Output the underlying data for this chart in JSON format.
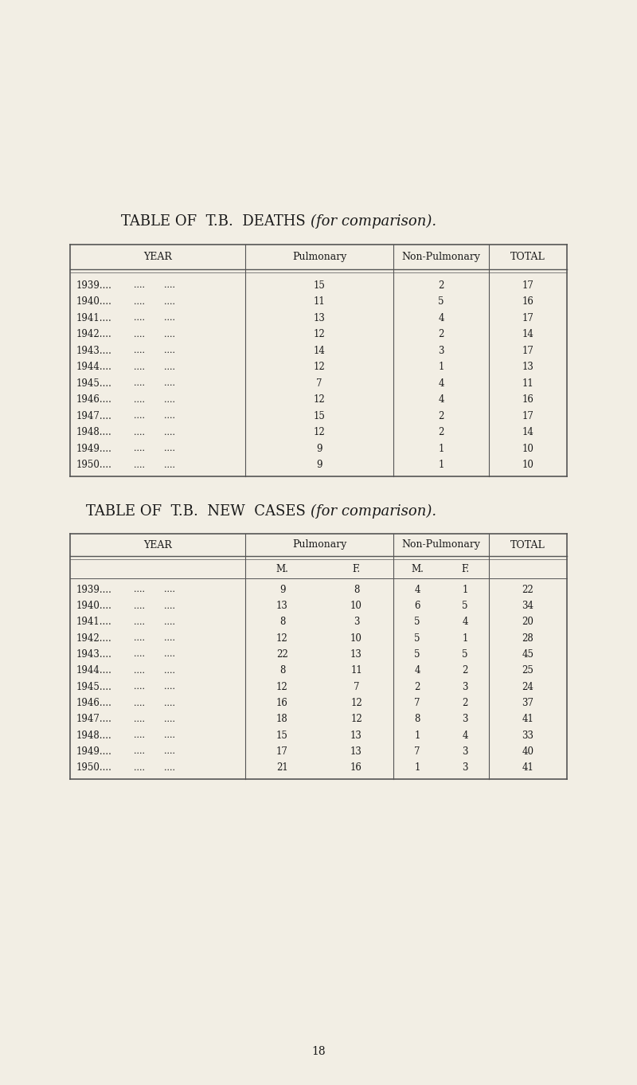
{
  "bg_color": "#f2eee4",
  "text_color": "#1a1a1a",
  "line_color": "#555555",
  "title1_normal": "TABLE OF  T.B.  DEATHS ",
  "title1_italic": "(for comparison).",
  "title2_normal": "TABLE OF  T.B.  NEW  CASES ",
  "title2_italic": "(for comparison).",
  "page_number": "18",
  "deaths_pulmonary": [
    15,
    11,
    13,
    12,
    14,
    12,
    7,
    12,
    15,
    12,
    9,
    9
  ],
  "deaths_nonpulmonary": [
    2,
    5,
    4,
    2,
    3,
    1,
    4,
    4,
    2,
    2,
    1,
    1
  ],
  "deaths_total": [
    17,
    16,
    17,
    14,
    17,
    13,
    11,
    16,
    17,
    14,
    10,
    10
  ],
  "cases_pulm_m": [
    9,
    13,
    8,
    12,
    22,
    8,
    12,
    16,
    18,
    15,
    17,
    21
  ],
  "cases_pulm_f": [
    8,
    10,
    3,
    10,
    13,
    11,
    7,
    12,
    12,
    13,
    13,
    16
  ],
  "cases_nonpulm_m": [
    4,
    6,
    5,
    5,
    5,
    4,
    2,
    7,
    8,
    1,
    7,
    1
  ],
  "cases_nonpulm_f": [
    1,
    5,
    4,
    1,
    5,
    2,
    3,
    2,
    3,
    4,
    3,
    3
  ],
  "cases_total": [
    22,
    34,
    20,
    28,
    45,
    25,
    24,
    37,
    41,
    33,
    40,
    41
  ],
  "years": [
    "1939",
    "1940",
    "1941",
    "1942",
    "1943",
    "1944",
    "1945",
    "1946",
    "1947",
    "1948",
    "1949",
    "1950"
  ]
}
